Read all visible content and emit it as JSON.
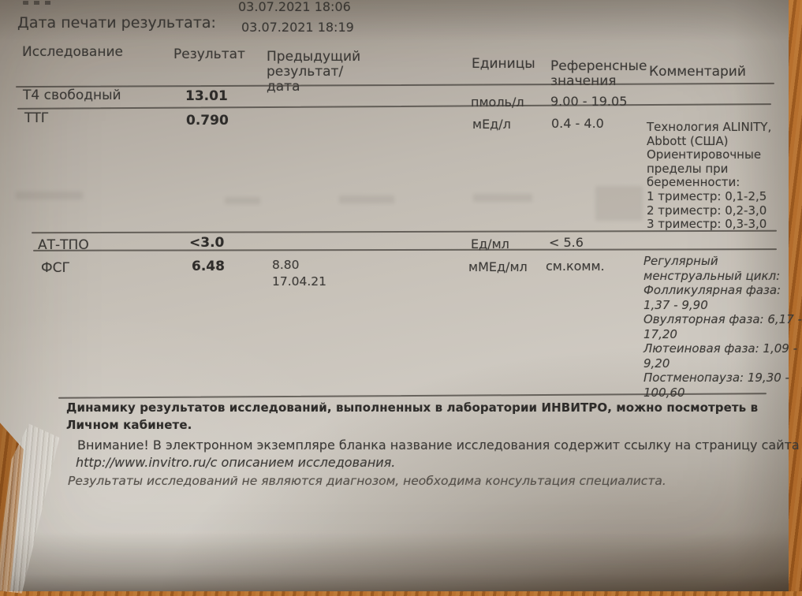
{
  "meta": {
    "top_datetime": "03.07.2021 18:06",
    "print_date_label": "Дата печати результата:",
    "print_datetime": "03.07.2021 18:19"
  },
  "table": {
    "headers": {
      "test": "Исследование",
      "result": "Результат",
      "previous": "Предыдущий результат/дата",
      "units": "Единицы",
      "reference": "Референсные значения",
      "comment": "Комментарий"
    },
    "rows": [
      {
        "name": "Т4 свободный",
        "result": "13.01",
        "units": "пмоль/л",
        "reference": "9.00 - 19.05"
      },
      {
        "name": "ТТГ",
        "result": "0.790",
        "units": "мЕд/л",
        "reference": "0.4 - 4.0",
        "comment_lines": [
          "Технология ALINITY,",
          "Abbott (США)",
          "Ориентировочные",
          "пределы при",
          "беременности:",
          "1 триместр: 0,1-2,5",
          "2 триместр: 0,2-3,0",
          "3 триместр: 0,3-3,0"
        ]
      },
      {
        "name": "АТ-ТПО",
        "result": "<3.0",
        "units": "Ед/мл",
        "reference": "< 5.6"
      },
      {
        "name": "ФСГ",
        "result": "6.48",
        "previous_result": "8.80",
        "previous_date": "17.04.21",
        "units": "мМЕд/мл",
        "reference": "см.комм.",
        "comment_lines": [
          "Регулярный",
          "менструальный цикл:",
          "Фолликулярная фаза:",
          "1,37 - 9,90",
          "Овуляторная фаза: 6,17 -",
          "17,20",
          "Лютеиновая фаза: 1,09 -",
          "9,20",
          "Постменопауза: 19,30 -",
          "100,60"
        ]
      }
    ]
  },
  "footer": {
    "dynamics": "Динамику результатов исследований, выполненных в лаборатории ИНВИТРО, можно посмотреть в Личном кабинете.",
    "attention": "Внимание! В электронном экземпляре бланка название исследования содержит ссылку на страницу сайта",
    "attention_url": "http://www.invitro.ru/с описанием исследования.",
    "disclaimer": "Результаты исследований не являются диагнозом, необходима консультация специалиста."
  },
  "colors": {
    "paper": "#c6c0b7",
    "wood": "#ab6628",
    "text": "#3c3a37",
    "rule": "#4f4b46"
  }
}
